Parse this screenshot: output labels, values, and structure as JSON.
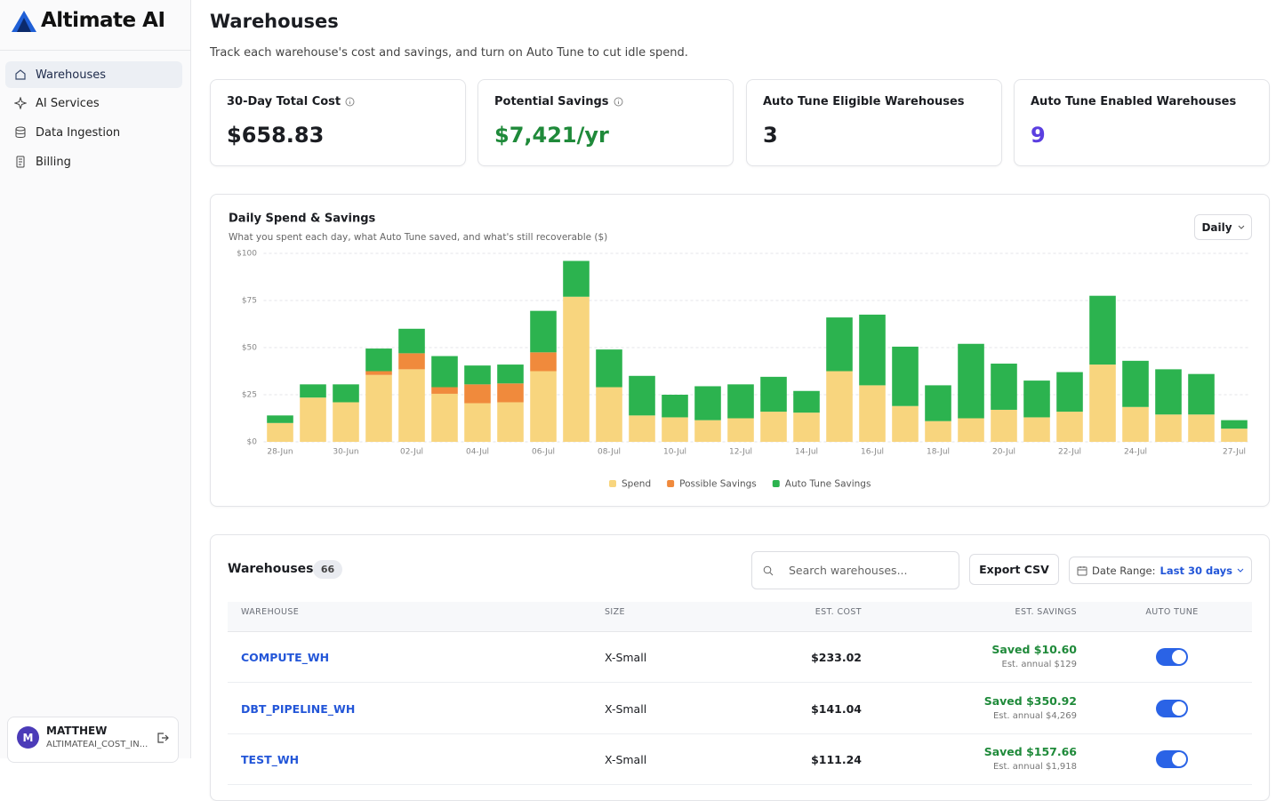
{
  "sidebar": {
    "brand": "Altimate AI",
    "nav": [
      "Warehouses",
      "AI Services",
      "Data Ingestion",
      "Billing"
    ],
    "user": {
      "avatar": "M",
      "name": "MATTHEW",
      "org": "ALTIMATEAI_COST_IN..."
    }
  },
  "header": {
    "title": "Warehouses",
    "subtitle": "Track each warehouse's cost and savings, and turn on Auto Tune to cut idle spend."
  },
  "kpis": [
    {
      "label": "30-Day Total Cost",
      "value": "$658.83"
    },
    {
      "label": "Potential Savings",
      "value": "$7,421/yr"
    },
    {
      "label": "Auto Tune Eligible Warehouses",
      "value": "3"
    },
    {
      "label": "Auto Tune Enabled Warehouses",
      "value": "9"
    }
  ],
  "controls": {
    "granularity": "Daily"
  },
  "chart_data": {
    "type": "stacked_bar",
    "title": "Daily Spend & Savings",
    "subtitle": "What you spent each day, what Auto Tune saved, and what's still recoverable ($)",
    "categories": [
      "28-Jun",
      null,
      "30-Jun",
      null,
      "02-Jul",
      null,
      "04-Jul",
      null,
      "06-Jul",
      null,
      "08-Jul",
      null,
      "10-Jul",
      null,
      "12-Jul",
      null,
      "14-Jul",
      null,
      "16-Jul",
      null,
      "18-Jul",
      null,
      "20-Jul",
      null,
      "22-Jul",
      null,
      "24-Jul",
      null,
      null,
      "27-Jul"
    ],
    "series": [
      {
        "name": "Spend",
        "color": "#f8d57e",
        "values": [
          10,
          23.5,
          21,
          35.5,
          38.5,
          25.5,
          20.5,
          21,
          37.5,
          77,
          29,
          14,
          13,
          11.5,
          12.5,
          16,
          15.5,
          37.5,
          30,
          19,
          11,
          12.5,
          17,
          13,
          16,
          41,
          18.5,
          14.5,
          14.5,
          7
        ]
      },
      {
        "name": "Possible Savings",
        "color": "#f08a3c",
        "values": [
          0,
          0,
          0,
          2,
          8.5,
          3.5,
          10,
          10,
          10,
          0,
          0,
          0,
          0,
          0,
          0,
          0,
          0,
          0,
          0,
          0,
          0,
          0,
          0,
          0,
          0,
          0,
          0,
          0,
          0,
          0
        ]
      },
      {
        "name": "Auto Tune Savings",
        "color": "#2cb34f",
        "values": [
          4,
          7,
          9.5,
          12,
          13,
          16.5,
          10,
          10,
          22,
          19,
          20,
          21,
          12,
          18,
          18,
          18.5,
          11.5,
          28.5,
          37.5,
          31.5,
          19,
          39.5,
          24.5,
          19.5,
          21,
          36.5,
          24.5,
          24,
          21.5,
          4.5
        ]
      }
    ],
    "ylim": [
      0,
      100
    ],
    "yticks": [
      {
        "value": 0,
        "label": "$0"
      },
      {
        "value": 25,
        "label": "$25"
      },
      {
        "value": 50,
        "label": "$50"
      },
      {
        "value": 75,
        "label": "$75"
      },
      {
        "value": 100,
        "label": "$100"
      }
    ],
    "grid": true,
    "legend": "bottom"
  },
  "table": {
    "title": "Warehouses",
    "count": 66,
    "search_placeholder": "Search warehouses...",
    "export": "Export CSV",
    "date_label": "Date Range:",
    "date_value": "Last 30 days",
    "columns": [
      "WAREHOUSE",
      "SIZE",
      "EST. COST",
      "EST. SAVINGS",
      "AUTO TUNE"
    ],
    "rows": [
      {
        "name": "COMPUTE_WH",
        "size": "X-Small",
        "cost": "$233.02",
        "saved": "Saved $10.60",
        "annual": "Est. annual $129",
        "auto_tune": true
      },
      {
        "name": "DBT_PIPELINE_WH",
        "size": "X-Small",
        "cost": "$141.04",
        "saved": "Saved $350.92",
        "annual": "Est. annual $4,269",
        "auto_tune": true
      },
      {
        "name": "TEST_WH",
        "size": "X-Small",
        "cost": "$111.24",
        "saved": "Saved $157.66",
        "annual": "Est. annual $1,918",
        "auto_tune": true
      }
    ]
  }
}
